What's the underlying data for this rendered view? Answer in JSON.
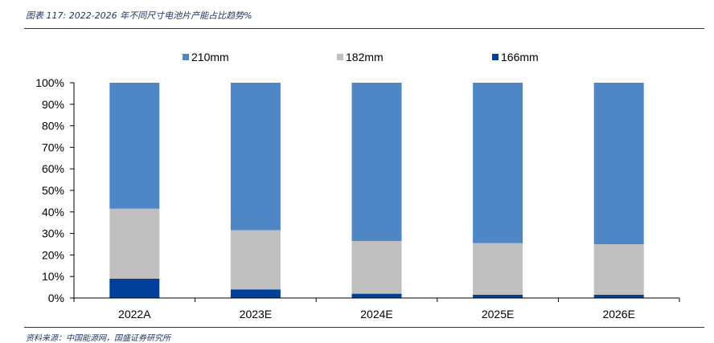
{
  "header": {
    "title": "图表 117: 2022-2026 年不同尺寸电池片产能占比趋势%"
  },
  "footer": {
    "source": "资料来源：中国能源网，国盛证券研究所"
  },
  "chart_data": {
    "type": "bar",
    "stacked": true,
    "categories": [
      "2022A",
      "2023E",
      "2024E",
      "2025E",
      "2026E"
    ],
    "series": [
      {
        "name": "166mm",
        "color": "#003f9a",
        "values": [
          9,
          4,
          2,
          1.5,
          1.5
        ]
      },
      {
        "name": "182mm",
        "color": "#bfbfbf",
        "values": [
          32.5,
          27.5,
          24.5,
          24,
          23.5
        ]
      },
      {
        "name": "210mm",
        "color": "#4f86c6",
        "values": [
          58.5,
          68.5,
          73.5,
          74.5,
          75
        ]
      }
    ],
    "legend_order": [
      "210mm",
      "182mm",
      "166mm"
    ],
    "legend_position": "top",
    "yticks": [
      "0%",
      "10%",
      "20%",
      "30%",
      "40%",
      "50%",
      "60%",
      "70%",
      "80%",
      "90%",
      "100%"
    ],
    "ylim": [
      0,
      100
    ],
    "grid": false
  }
}
